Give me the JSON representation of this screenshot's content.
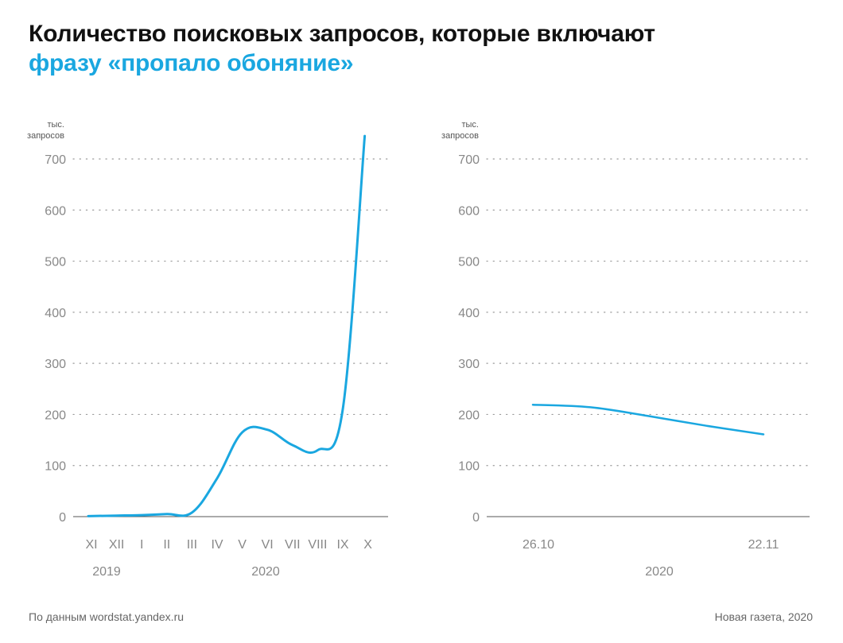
{
  "title": {
    "line1": "Количество поисковых запросов, которые включают",
    "line2": "фразу «пропало обоняние»"
  },
  "footer": {
    "source": "По данным wordstat.yandex.ru",
    "credit": "Новая газета, 2020"
  },
  "colors": {
    "accent": "#1aa7e0",
    "text": "#111111",
    "muted": "#888888",
    "axis": "#555555"
  },
  "chart_data": [
    {
      "type": "line",
      "unit_label": [
        "тыс.",
        "запросов"
      ],
      "yticks": [
        0,
        100,
        200,
        300,
        400,
        500,
        600,
        700
      ],
      "ylim": [
        0,
        700
      ],
      "categories": [
        "XI",
        "XII",
        "I",
        "II",
        "III",
        "IV",
        "V",
        "VI",
        "VII",
        "VIII",
        "IX",
        "X"
      ],
      "year_labels": [
        {
          "text": "2019",
          "at": "XII"
        },
        {
          "text": "2020",
          "at": "VI"
        }
      ],
      "grid": true,
      "series": [
        {
          "values": [
            1,
            2,
            3,
            5,
            8,
            75,
            165,
            170,
            140,
            130,
            210,
            745
          ]
        }
      ]
    },
    {
      "type": "line",
      "unit_label": [
        "тыс.",
        "запросов"
      ],
      "yticks": [
        0,
        100,
        200,
        300,
        400,
        500,
        600,
        700
      ],
      "ylim": [
        0,
        700
      ],
      "x_labels": [
        "26.10",
        "22.11"
      ],
      "year_labels": [
        {
          "text": "2020"
        }
      ],
      "grid": true,
      "series": [
        {
          "x": [
            "26.10",
            "02.11",
            "09.11",
            "15.11",
            "22.11"
          ],
          "values": [
            219,
            214,
            197,
            178,
            161
          ]
        }
      ]
    }
  ]
}
